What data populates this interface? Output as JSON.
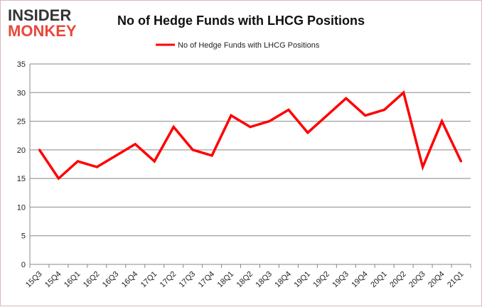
{
  "logo": {
    "line1": "INSIDER",
    "line2": "MONKEY"
  },
  "colors": {
    "series": "#ff0000",
    "grid": "#888888",
    "logo_dark": "#333333",
    "logo_red": "#e8483c"
  },
  "chart_data": {
    "type": "line",
    "title": "No of Hedge Funds with LHCG Positions",
    "xlabel": "",
    "ylabel": "",
    "legend": {
      "position": "top-center"
    },
    "ylim": [
      0,
      35
    ],
    "yticks": [
      0,
      5,
      10,
      15,
      20,
      25,
      30,
      35
    ],
    "grid": true,
    "categories": [
      "15Q3",
      "15Q4",
      "16Q1",
      "16Q2",
      "16Q3",
      "16Q4",
      "17Q1",
      "17Q2",
      "17Q3",
      "17Q4",
      "18Q1",
      "18Q2",
      "18Q3",
      "18Q4",
      "19Q1",
      "19Q2",
      "19Q3",
      "19Q4",
      "20Q1",
      "20Q2",
      "20Q3",
      "20Q4",
      "21Q1"
    ],
    "series": [
      {
        "name": "No of Hedge Funds with LHCG Positions",
        "values": [
          20,
          15,
          18,
          17,
          19,
          21,
          18,
          24,
          20,
          19,
          26,
          24,
          25,
          27,
          23,
          26,
          29,
          26,
          27,
          30,
          17,
          25,
          18
        ]
      }
    ]
  }
}
